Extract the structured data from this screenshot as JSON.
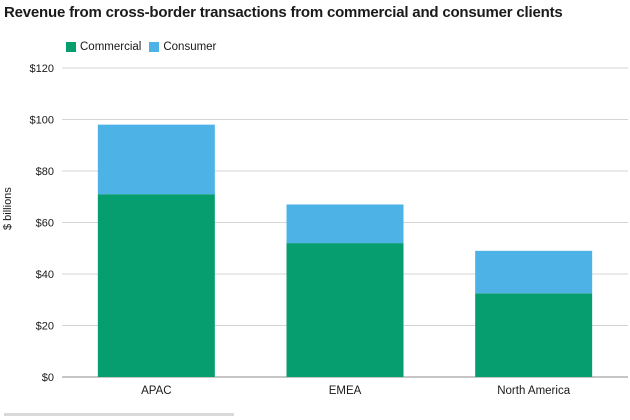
{
  "title": "Revenue from cross-border transactions from commercial and consumer clients",
  "chart_data": {
    "type": "bar",
    "stacked": true,
    "categories": [
      "APAC",
      "EMEA",
      "North America"
    ],
    "series": [
      {
        "name": "Commercial",
        "values": [
          71,
          52,
          32.5
        ],
        "color": "#079e6f"
      },
      {
        "name": "Consumer",
        "values": [
          27,
          15,
          16.5
        ],
        "color": "#4db3e6"
      }
    ],
    "ylabel": "$ billions",
    "xlabel": "",
    "ylim": [
      0,
      120
    ],
    "yticks": [
      0,
      20,
      40,
      60,
      80,
      100,
      120
    ],
    "ytick_labels": [
      "$0",
      "$20",
      "$40",
      "$60",
      "$80",
      "$100",
      "$120"
    ],
    "grid": true,
    "legend": "top-left"
  }
}
